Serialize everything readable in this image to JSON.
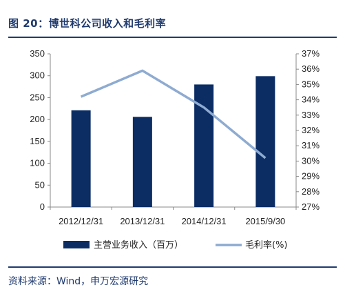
{
  "figure": {
    "title": "图 20：博世科公司收入和毛利率",
    "source": "资料来源：Wind，申万宏源研究"
  },
  "chart_data": {
    "type": "bar",
    "categories": [
      "2012/12/31",
      "2013/12/31",
      "2014/12/31",
      "2015/9/30"
    ],
    "series": [
      {
        "name": "主营业务收入（百万）",
        "kind": "bar",
        "axis": "left",
        "color": "#0b2d64",
        "values": [
          221,
          206,
          280,
          299
        ]
      },
      {
        "name": "毛利率(%)",
        "kind": "line",
        "axis": "right",
        "color": "#8eabd1",
        "values": [
          34.2,
          35.9,
          33.5,
          30.2
        ]
      }
    ],
    "yleft": {
      "min": 0,
      "max": 350,
      "step": 50,
      "ticks": [
        "0",
        "50",
        "100",
        "150",
        "200",
        "250",
        "300",
        "350"
      ]
    },
    "yright": {
      "min": 27,
      "max": 37,
      "step": 1,
      "ticks": [
        "27%",
        "28%",
        "29%",
        "30%",
        "31%",
        "32%",
        "33%",
        "34%",
        "35%",
        "36%",
        "37%"
      ]
    },
    "legend_position": "bottom",
    "grid": false
  }
}
